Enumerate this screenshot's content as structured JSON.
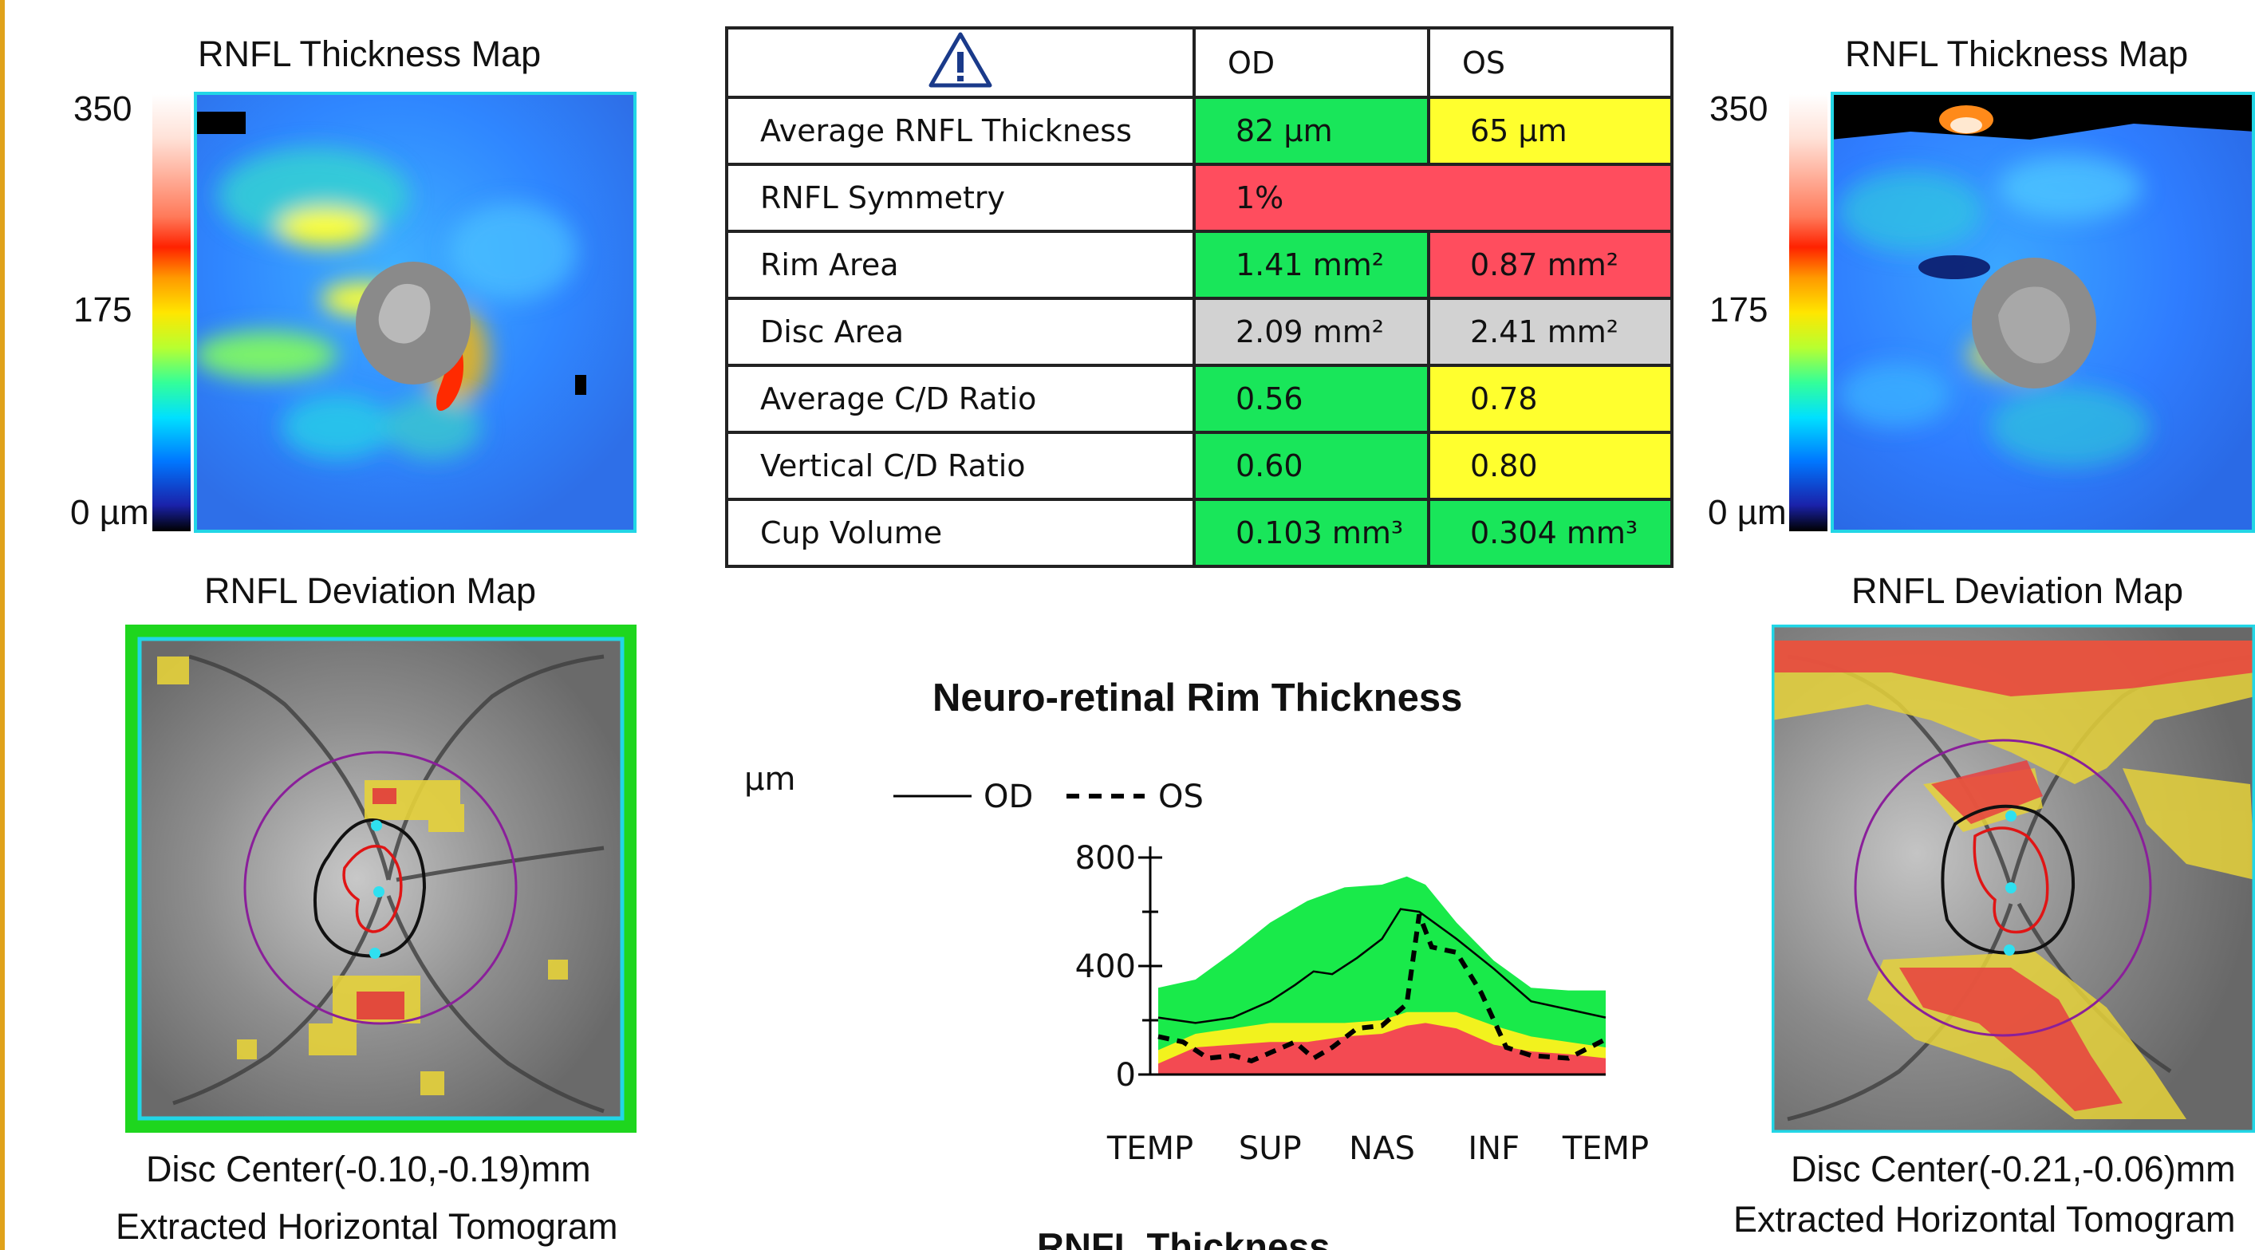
{
  "left_eye": {
    "thickness_map_title": "RNFL Thickness Map",
    "scale_max": "350",
    "scale_mid": "175",
    "scale_min": "0 µm",
    "deviation_map_title": "RNFL Deviation Map",
    "disc_center": "Disc Center(-0.10,-0.19)mm",
    "tomogram_label": "Extracted Horizontal Tomogram"
  },
  "right_eye": {
    "thickness_map_title": "RNFL Thickness Map",
    "scale_max": "350",
    "scale_mid": "175",
    "scale_min": "0 µm",
    "deviation_map_title": "RNFL Deviation Map",
    "disc_center": "Disc Center(-0.21,-0.06)mm",
    "tomogram_label": "Extracted Horizontal Tomogram"
  },
  "summary_table": {
    "header": {
      "icon": "warning-triangle-icon",
      "od": "OD",
      "os": "OS"
    },
    "rows": [
      {
        "label": "Average RNFL Thickness",
        "od": "82 µm",
        "os": "65 µm",
        "od_color": "#19e65a",
        "os_color": "#ffff2e"
      },
      {
        "label": "RNFL Symmetry",
        "value": "1%",
        "color": "#ff4d5e"
      },
      {
        "label": "Rim Area",
        "od": "1.41 mm²",
        "os": "0.87 mm²",
        "od_color": "#19e65a",
        "os_color": "#ff4d5e"
      },
      {
        "label": "Disc Area",
        "od": "2.09 mm²",
        "os": "2.41 mm²",
        "od_color": "#d2d2d2",
        "os_color": "#d2d2d2"
      },
      {
        "label": "Average C/D Ratio",
        "od": "0.56",
        "os": "0.78",
        "od_color": "#19e65a",
        "os_color": "#ffff2e"
      },
      {
        "label": "Vertical C/D Ratio",
        "od": "0.60",
        "os": "0.80",
        "od_color": "#19e65a",
        "os_color": "#ffff2e"
      },
      {
        "label": "Cup Volume",
        "od": "0.103 mm³",
        "os": "0.304 mm³",
        "od_color": "#19e65a",
        "os_color": "#19e65a"
      }
    ]
  },
  "chart_data": {
    "type": "line",
    "title": "Neuro-retinal Rim Thickness",
    "ylabel": "µm",
    "ylim": [
      0,
      800
    ],
    "yticks": [
      0,
      400,
      800
    ],
    "xlim": [
      0,
      360
    ],
    "x_tick_labels": [
      "TEMP",
      "SUP",
      "NAS",
      "INF",
      "TEMP"
    ],
    "x_tick_positions": [
      0,
      90,
      180,
      270,
      360
    ],
    "legend": {
      "od": "OD",
      "os": "OS",
      "placement": "top"
    },
    "normal_bands": {
      "x": [
        0,
        30,
        60,
        90,
        120,
        150,
        180,
        200,
        215,
        240,
        270,
        300,
        330,
        360
      ],
      "red_top": [
        40,
        100,
        110,
        120,
        120,
        140,
        150,
        180,
        190,
        170,
        110,
        85,
        75,
        60
      ],
      "yellow_top": [
        90,
        150,
        170,
        190,
        190,
        190,
        200,
        230,
        230,
        230,
        180,
        140,
        120,
        100
      ],
      "green_top": [
        320,
        350,
        450,
        560,
        640,
        690,
        700,
        730,
        700,
        560,
        420,
        320,
        310,
        310
      ]
    },
    "series": [
      {
        "name": "OD",
        "style": "solid",
        "x": [
          0,
          30,
          60,
          90,
          110,
          125,
          140,
          160,
          180,
          195,
          210,
          240,
          270,
          300,
          330,
          360
        ],
        "y": [
          210,
          190,
          210,
          270,
          330,
          380,
          370,
          430,
          500,
          610,
          600,
          500,
          390,
          270,
          240,
          210
        ]
      },
      {
        "name": "OS",
        "style": "dashed",
        "x": [
          0,
          20,
          40,
          60,
          75,
          90,
          110,
          125,
          140,
          160,
          180,
          200,
          210,
          220,
          240,
          260,
          280,
          300,
          330,
          360
        ],
        "y": [
          140,
          120,
          60,
          70,
          50,
          80,
          120,
          60,
          100,
          170,
          180,
          260,
          590,
          470,
          450,
          300,
          100,
          70,
          60,
          130
        ]
      }
    ]
  },
  "partial_footer_label": "RNFL Thickness"
}
